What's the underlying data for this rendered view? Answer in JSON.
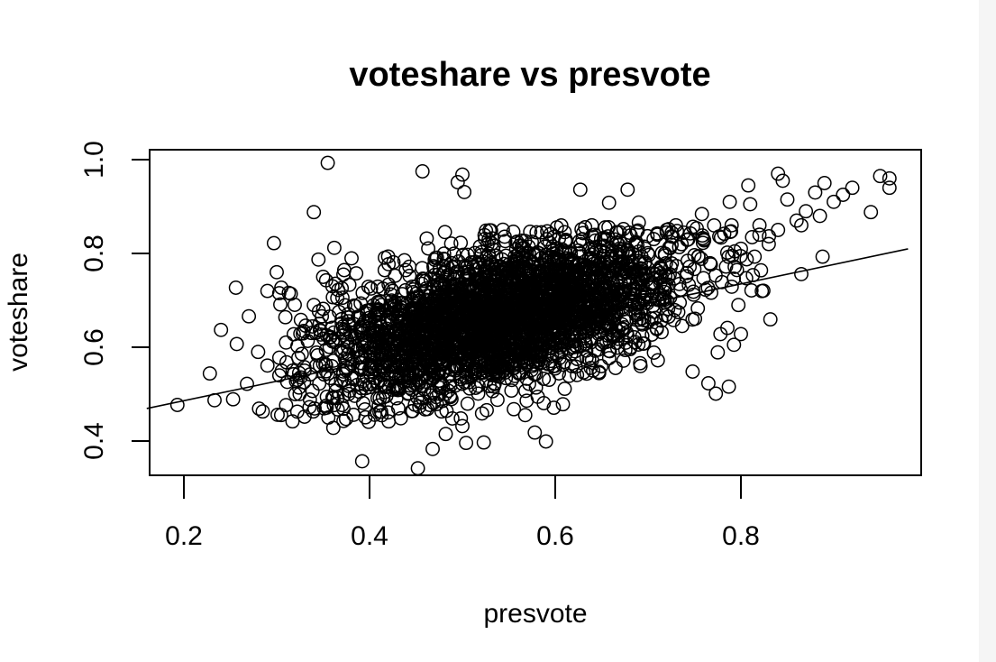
{
  "window": {
    "strip_color": "#f5f5f5",
    "background": "#ffffff",
    "ink": "#000000"
  },
  "chart_data": {
    "type": "scatter",
    "title": "voteshare vs presvote",
    "xlabel": "presvote",
    "ylabel": "voteshare",
    "xlim": [
      0.16,
      0.98
    ],
    "ylim": [
      0.32,
      1.02
    ],
    "xticks": [
      0.2,
      0.4,
      0.6,
      0.8
    ],
    "xtick_labels": [
      "0.2",
      "0.4",
      "0.6",
      "0.8"
    ],
    "yticks": [
      0.4,
      0.6,
      0.8,
      1.0
    ],
    "ytick_labels": [
      "0.4",
      "0.6",
      "0.8",
      "1.0"
    ],
    "grid": false,
    "legend": "none",
    "marker": "open-circle",
    "regression_line": {
      "intercept": 0.403,
      "slope": 0.415
    },
    "cloud": {
      "n": 3100,
      "center_x": 0.545,
      "sd_x": 0.095,
      "sd_y": 0.072
    },
    "points": [
      [
        0.193,
        0.477
      ],
      [
        0.228,
        0.544
      ],
      [
        0.233,
        0.487
      ],
      [
        0.24,
        0.637
      ],
      [
        0.253,
        0.489
      ],
      [
        0.256,
        0.727
      ],
      [
        0.257,
        0.607
      ],
      [
        0.268,
        0.522
      ],
      [
        0.27,
        0.666
      ],
      [
        0.281,
        0.469
      ],
      [
        0.285,
        0.463
      ],
      [
        0.29,
        0.561
      ],
      [
        0.297,
        0.822
      ],
      [
        0.301,
        0.456
      ],
      [
        0.305,
        0.727
      ],
      [
        0.313,
        0.716
      ],
      [
        0.317,
        0.442
      ],
      [
        0.33,
        0.452
      ],
      [
        0.34,
        0.888
      ],
      [
        0.345,
        0.787
      ],
      [
        0.355,
        0.993
      ],
      [
        0.361,
        0.428
      ],
      [
        0.362,
        0.812
      ],
      [
        0.392,
        0.357
      ],
      [
        0.399,
        0.441
      ],
      [
        0.452,
        0.342
      ],
      [
        0.457,
        0.975
      ],
      [
        0.468,
        0.383
      ],
      [
        0.482,
        0.415
      ],
      [
        0.495,
        0.952
      ],
      [
        0.5,
        0.968
      ],
      [
        0.5,
        0.432
      ],
      [
        0.502,
        0.931
      ],
      [
        0.504,
        0.396
      ],
      [
        0.523,
        0.397
      ],
      [
        0.578,
        0.418
      ],
      [
        0.59,
        0.399
      ],
      [
        0.627,
        0.936
      ],
      [
        0.658,
        0.908
      ],
      [
        0.678,
        0.936
      ],
      [
        0.69,
        0.866
      ],
      [
        0.748,
        0.548
      ],
      [
        0.758,
        0.884
      ],
      [
        0.765,
        0.523
      ],
      [
        0.773,
        0.501
      ],
      [
        0.775,
        0.589
      ],
      [
        0.778,
        0.628
      ],
      [
        0.787,
        0.516
      ],
      [
        0.788,
        0.91
      ],
      [
        0.8,
        0.628
      ],
      [
        0.808,
        0.945
      ],
      [
        0.81,
        0.905
      ],
      [
        0.82,
        0.86
      ],
      [
        0.84,
        0.97
      ],
      [
        0.845,
        0.955
      ],
      [
        0.85,
        0.915
      ],
      [
        0.865,
        0.86
      ],
      [
        0.865,
        0.756
      ],
      [
        0.88,
        0.93
      ],
      [
        0.885,
        0.88
      ],
      [
        0.888,
        0.793
      ],
      [
        0.89,
        0.95
      ],
      [
        0.9,
        0.91
      ],
      [
        0.91,
        0.925
      ],
      [
        0.92,
        0.94
      ],
      [
        0.94,
        0.888
      ],
      [
        0.95,
        0.965
      ],
      [
        0.96,
        0.96
      ],
      [
        0.96,
        0.94
      ],
      [
        0.82,
        0.84
      ],
      [
        0.83,
        0.82
      ],
      [
        0.86,
        0.87
      ],
      [
        0.87,
        0.89
      ],
      [
        0.84,
        0.85
      ],
      [
        0.8,
        0.81
      ],
      [
        0.79,
        0.86
      ],
      [
        0.76,
        0.83
      ],
      [
        0.73,
        0.86
      ],
      [
        0.72,
        0.85
      ],
      [
        0.71,
        0.84
      ],
      [
        0.37,
        0.66
      ],
      [
        0.36,
        0.73
      ],
      [
        0.35,
        0.75
      ],
      [
        0.34,
        0.69
      ],
      [
        0.33,
        0.55
      ],
      [
        0.32,
        0.5
      ],
      [
        0.31,
        0.61
      ],
      [
        0.3,
        0.76
      ],
      [
        0.29,
        0.72
      ],
      [
        0.28,
        0.59
      ]
    ]
  }
}
